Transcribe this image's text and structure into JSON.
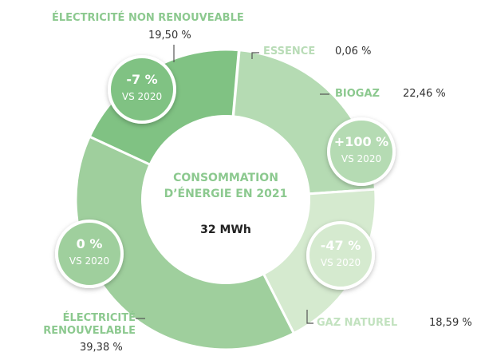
{
  "chart_data": {
    "type": "donut",
    "title": "CONSOMMATION D’ÉNERGIE EN 2021",
    "total_label": "32 MWh",
    "categories": [
      "ESSENCE",
      "BIOGAZ",
      "GAZ NATUREL",
      "ÉLECTRICITÉ RENOUVELABLE",
      "ÉLECTRICITÉ NON RENOUVEABLE"
    ],
    "values": [
      0.06,
      22.46,
      18.59,
      39.38,
      19.5
    ],
    "value_labels": [
      "0,06 %",
      "22,46 %",
      "18,59 %",
      "39,38 %",
      "19,50 %"
    ],
    "colors": [
      "#c7e4c5",
      "#b5dbb3",
      "#d5eacf",
      "#9fcf9d",
      "#80c283"
    ],
    "badges": [
      {
        "value": "+100 %",
        "note": "VS 2020"
      },
      {
        "value": "-47 %",
        "note": "VS 2020"
      },
      {
        "value": "0 %",
        "note": "VS 2020"
      },
      {
        "value": "-7 %",
        "note": "VS 2020"
      }
    ]
  }
}
